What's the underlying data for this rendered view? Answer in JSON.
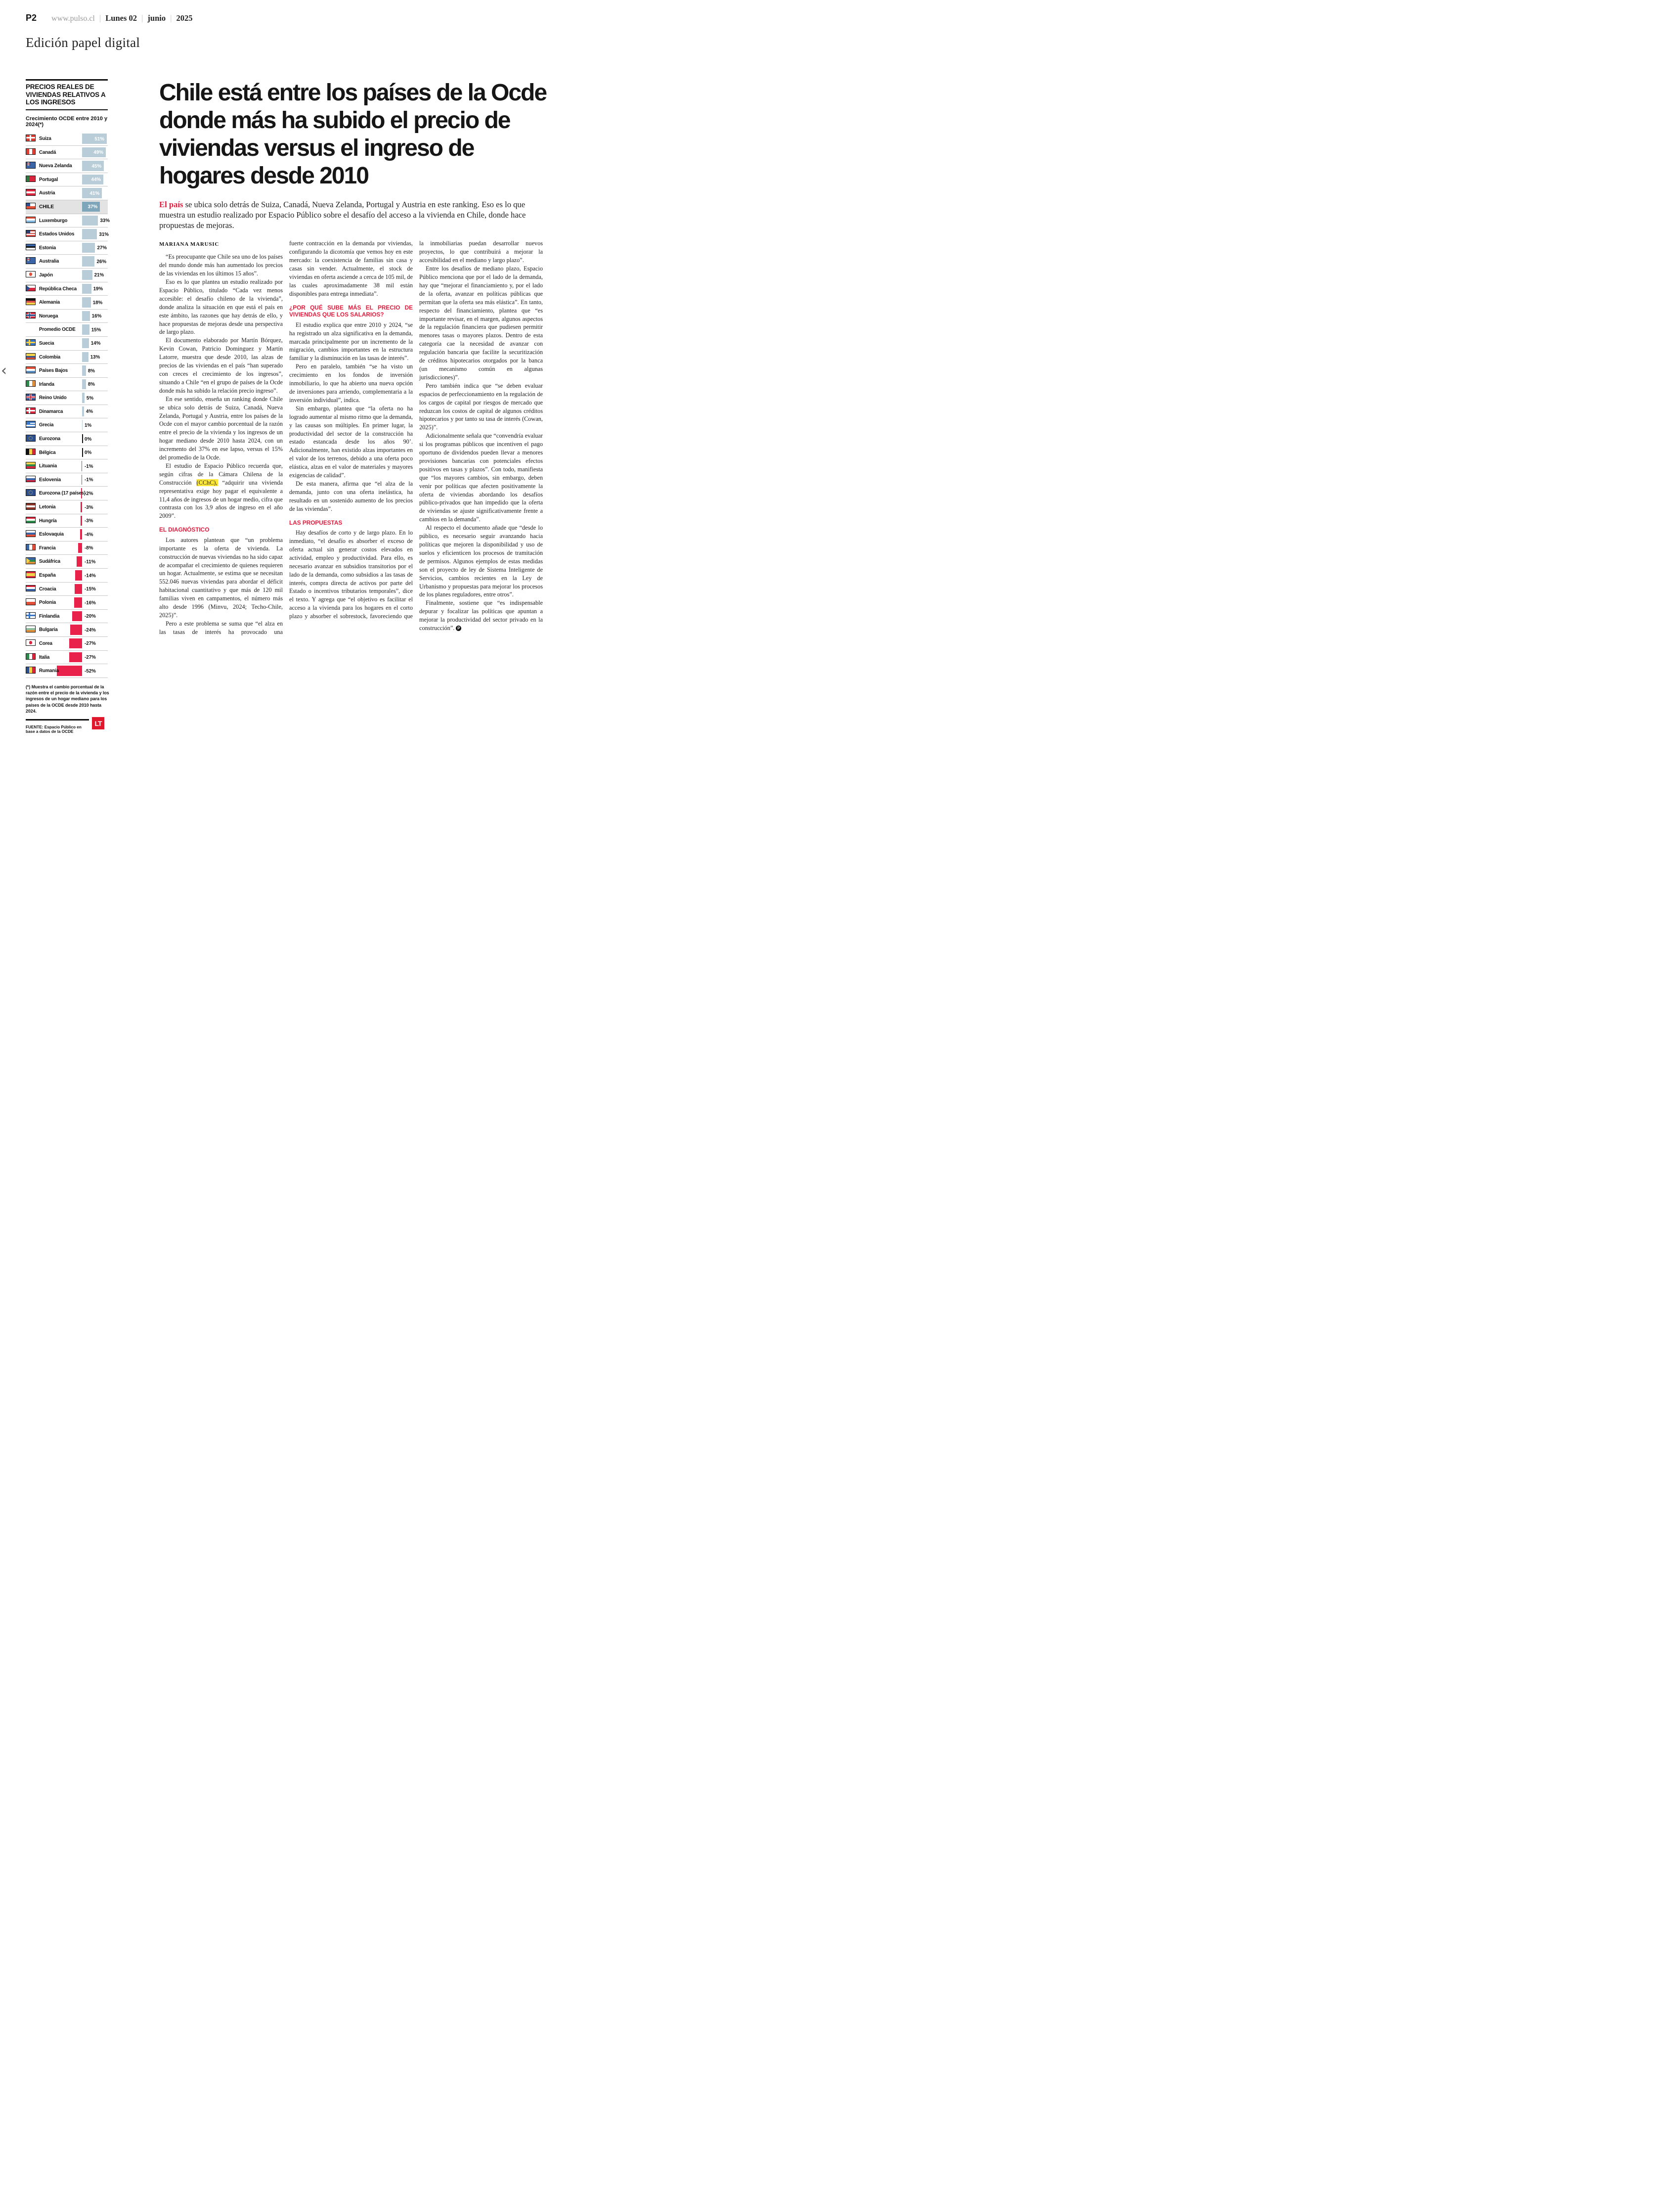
{
  "page": {
    "page_number": "P2",
    "site": "www.pulso.cl",
    "date_day": "Lunes 02",
    "date_month": "junio",
    "date_year": "2025",
    "edition": "Edición papel digital",
    "prev_arrow": "‹"
  },
  "chart_data": {
    "type": "bar",
    "title": "PRECIOS REALES DE VIVIENDAS RELATIVOS A LOS INGRESOS",
    "subtitle": "Crecimiento OCDE entre 2010 y 2024(*)",
    "unit": "%",
    "xlim": [
      -52,
      51
    ],
    "orientation": "horizontal",
    "highlight": "CHILE",
    "positive_color": "#b9cdd8",
    "highlight_bar_color": "#7fa5ba",
    "negative_color": "#e8224a",
    "categories": [
      "Suiza",
      "Canadá",
      "Nueva Zelanda",
      "Portugal",
      "Austria",
      "CHILE",
      "Luxemburgo",
      "Estados Unidos",
      "Estonia",
      "Australia",
      "Japón",
      "República Checa",
      "Alemania",
      "Noruega",
      "Promedio OCDE",
      "Suecia",
      "Colombia",
      "Países Bajos",
      "Irlanda",
      "Reino Unido",
      "Dinamarca",
      "Grecia",
      "Eurozona",
      "Bélgica",
      "Lituania",
      "Eslovenia",
      "Eurozona (17 países)",
      "Letonia",
      "Hungría",
      "Eslovaquia",
      "Francia",
      "Sudáfrica",
      "España",
      "Croacia",
      "Polonia",
      "Finlandia",
      "Bulgaria",
      "Corea",
      "Italia",
      "Rumania"
    ],
    "values": [
      51,
      49,
      45,
      44,
      41,
      37,
      33,
      31,
      27,
      26,
      21,
      19,
      18,
      16,
      15,
      14,
      13,
      8,
      8,
      5,
      4,
      1,
      0,
      0,
      -1,
      -1,
      -2,
      -3,
      -3,
      -4,
      -8,
      -11,
      -14,
      -15,
      -16,
      -20,
      -24,
      -27,
      -27,
      -52
    ],
    "flags": [
      {
        "k": "pluscross",
        "c": [
          "#df3e34",
          "#ffffff"
        ]
      },
      {
        "k": "v",
        "c": [
          "#df3e34",
          "#ffffff",
          "#df3e34"
        ]
      },
      {
        "k": "ukc",
        "c": [
          "#3a66a8"
        ]
      },
      {
        "k": "v",
        "c": [
          "#2c7a3f",
          "#d8243c",
          "#d8243c"
        ]
      },
      {
        "k": "h",
        "c": [
          "#d8243c",
          "#ffffff",
          "#d8243c"
        ]
      },
      {
        "k": "canton",
        "c": [
          "#ffffff",
          "#e05038"
        ],
        "cc": "#2c4f8f"
      },
      {
        "k": "h",
        "c": [
          "#e05038",
          "#ffffff",
          "#7fb2d8"
        ]
      },
      {
        "k": "canton",
        "c": [
          "#d8504a",
          "#ffffff",
          "#d8504a",
          "#ffffff",
          "#d8504a"
        ],
        "cc": "#2c3f6e"
      },
      {
        "k": "h",
        "c": [
          "#3a66a8",
          "#111111",
          "#ffffff"
        ]
      },
      {
        "k": "ukc",
        "c": [
          "#3a66a8"
        ]
      },
      {
        "k": "circle",
        "c": [
          "#ffffff",
          "#e05038"
        ]
      },
      {
        "k": "tri",
        "c": [
          "#ffffff",
          "#d8243c"
        ],
        "t": "#2c4f8f"
      },
      {
        "k": "h",
        "c": [
          "#111111",
          "#d8504a",
          "#f2d24a"
        ]
      },
      {
        "k": "cross2",
        "c": [
          "#d8243c",
          "#ffffff",
          "#2c4f8f"
        ]
      },
      null,
      {
        "k": "cross",
        "c": [
          "#3a75c4",
          "#f2d24a"
        ]
      },
      {
        "k": "hw",
        "c": [
          "#f2d24a",
          "#2c4f8f",
          "#e05038"
        ],
        "w": [
          2,
          1,
          1
        ]
      },
      {
        "k": "h",
        "c": [
          "#e05038",
          "#ffffff",
          "#5c8fc0"
        ]
      },
      {
        "k": "v",
        "c": [
          "#2c8a4a",
          "#ffffff",
          "#e0923a"
        ]
      },
      {
        "k": "pluscross2",
        "c": [
          "#35508f",
          "#ffffff",
          "#d8243c"
        ]
      },
      {
        "k": "cross",
        "c": [
          "#d8243c",
          "#ffffff"
        ]
      },
      {
        "k": "canton",
        "c": [
          "#3a75c4",
          "#ffffff",
          "#3a75c4",
          "#ffffff",
          "#3a75c4"
        ],
        "cc": "#3a75c4"
      },
      {
        "k": "eu",
        "c": [
          "#2c4f8f",
          "#f2d24a"
        ]
      },
      {
        "k": "v",
        "c": [
          "#111111",
          "#f2d24a",
          "#d8243c"
        ]
      },
      {
        "k": "h",
        "c": [
          "#f2d24a",
          "#2c8a4a",
          "#d8243c"
        ]
      },
      {
        "k": "h",
        "c": [
          "#ffffff",
          "#3a66a8",
          "#d8243c"
        ]
      },
      {
        "k": "eu",
        "c": [
          "#2c4f8f",
          "#f2d24a"
        ]
      },
      {
        "k": "h",
        "c": [
          "#8a3428",
          "#ffffff",
          "#8a3428"
        ]
      },
      {
        "k": "h",
        "c": [
          "#d8243c",
          "#ffffff",
          "#2c8a4a"
        ]
      },
      {
        "k": "h",
        "c": [
          "#ffffff",
          "#3a66a8",
          "#e05038"
        ]
      },
      {
        "k": "v",
        "c": [
          "#3a66a8",
          "#ffffff",
          "#e05038"
        ]
      },
      {
        "k": "tri",
        "c": [
          "#3a66a8",
          "#2c8a4a",
          "#e0923a"
        ],
        "t": "#f2d24a"
      },
      {
        "k": "hw",
        "c": [
          "#d8243c",
          "#f2d24a",
          "#d8243c"
        ],
        "w": [
          1,
          2,
          1
        ]
      },
      {
        "k": "h",
        "c": [
          "#d8243c",
          "#ffffff",
          "#3a66a8"
        ]
      },
      {
        "k": "h",
        "c": [
          "#ffffff",
          "#e05038"
        ]
      },
      {
        "k": "cross",
        "c": [
          "#ffffff",
          "#3a75c4"
        ]
      },
      {
        "k": "h",
        "c": [
          "#ffffff",
          "#8fbf9f",
          "#e0923a"
        ]
      },
      {
        "k": "circle",
        "c": [
          "#ffffff",
          "#d8243c"
        ]
      },
      {
        "k": "v",
        "c": [
          "#2c8a4a",
          "#ffffff",
          "#d8243c"
        ]
      },
      {
        "k": "v",
        "c": [
          "#2c4f8f",
          "#f2d24a",
          "#d8243c"
        ]
      }
    ],
    "footnote": "(*) Muestra el cambio porcentual de la razón entre el precio de la vivienda y los ingresos de un hogar mediano para los países de la OCDE desde 2010 hasta 2024.",
    "source": "FUENTE: Espacio Público en base a datos de la OCDE",
    "logo": "LT"
  },
  "article": {
    "headline": "Chile está entre los países de la Ocde donde más ha subido el precio de viviendas versus el ingreso de hogares desde 2010",
    "lede_lead": "El país",
    "lede_rest": " se ubica solo detrás de Suiza, Canadá, Nueva Zelanda, Portugal y Austria en este ranking. Eso es lo que muestra un estudio realizado por Espacio Público sobre el desafío del acceso a la vivienda en Chile, donde hace propuestas de mejoras.",
    "byline": "MARIANA MARUSIC",
    "col1": [
      {
        "t": "by",
        "text": "MARIANA MARUSIC"
      },
      {
        "t": "p",
        "text": "“Es preocupante que Chile sea uno de los países del mundo donde más han aumentado los precios de las viviendas en los últimos 15 años”."
      },
      {
        "t": "p",
        "text": "Eso es lo que plantea un estudio realizado por Espacio Público, titulado “Cada vez menos accesible: el desafío chileno de la vivienda”, donde analiza la situación en que está el país en este ámbito, las razones que hay detrás de ello, y hace propuestas de mejoras desde una perspectiva de largo plazo."
      },
      {
        "t": "p",
        "text": "El documento elaborado por Martín Bórquez, Kevin Cowan, Patricio Dominguez y Martín Latorre, muestra que desde 2010, las alzas de precios de las viviendas en el país “han superado con creces el crecimiento de los ingresos”, situando a Chile “en el grupo de países de la Ocde donde más ha subido la relación precio ingreso”."
      },
      {
        "t": "p",
        "text": "En ese sentido, enseña un ranking donde Chile se ubica solo detrás de Suiza, Canadá, Nueva Zelanda, Portugal y Austria, entre los países de la Ocde con el mayor cambio porcentual de la razón entre el precio de la vivienda y los ingresos de un hogar mediano desde 2010 hasta 2024, con un incremento del 37% en ese lapso, versus el 15% del promedio de la Ocde."
      },
      {
        "t": "p",
        "pre": "El estudio de Espacio Público recuerda que, según cifras de la Cámara Chilena de la Construcción ",
        "hl": "(CChC),",
        "post": " “adquirir una vivienda representativa exige hoy pagar el equivalente a 11,4 años de ingresos de un hogar medio, cifra que contrasta con los 3,9 años de ingreso en el año 2009”."
      },
      {
        "t": "h",
        "text": "EL DIAGNÓSTICO"
      },
      {
        "t": "p",
        "text": "Los autores plantean que “un problema importante es la oferta de vivienda. La construcción de nuevas viviendas no ha sido capaz de acompañar el crecimiento de quienes requieren un hogar. Actualmente, se estima que se necesitan 552.046 nuevas viviendas para abordar el déficit habitacional cuantitativo y que más de 120 mil familias viven en campamentos, el número más alto desde 1996 (Minvu, 2024; Techo-Chile, 2025)”."
      },
      {
        "t": "p",
        "text": "Pero a este problema se suma que “el alza en las tasas de interés ha provocado una",
        "cont": true
      }
    ],
    "col2": [
      {
        "t": "p",
        "indent": false,
        "text": "fuerte contracción en la demanda por viviendas, configurando la dicotomía que vemos hoy en este mercado: la coexistencia de familias sin casa y casas sin vender. Actualmente, el stock de viviendas en oferta asciende a cerca de 105 mil, de las cuales aproximadamente 38 mil están disponibles para entrega inmediata”."
      },
      {
        "t": "h",
        "text": "¿POR QUÉ SUBE MÁS EL PRECIO DE VIVIENDAS QUE LOS SALARIOS?"
      },
      {
        "t": "p",
        "text": "El estudio explica que entre 2010 y 2024, “se ha registrado un alza significativa en la demanda, marcada principalmente por un incremento de la migración, cambios importantes en la estructura familiar y la disminución en las tasas de interés”."
      },
      {
        "t": "p",
        "text": "Pero en paralelo, también “se ha visto un crecimiento en los fondos de inversión inmobiliario, lo que ha abierto una nueva opción de inversiones para arriendo, complementaria a la inversión individual”, indica."
      },
      {
        "t": "p",
        "text": "Sin embargo, plantea que “la oferta no ha logrado aumentar al mismo ritmo que la demanda, y las causas son múltiples. En primer lugar, la productividad del sector de la construcción ha estado estancada desde los años 90’. Adicionalmente, han existido alzas importantes en el valor de los terrenos, debido a una oferta poco elástica, alzas en el valor de materiales y mayores exigencias de calidad”."
      },
      {
        "t": "p",
        "text": "De esta manera, afirma que “el alza de la demanda, junto con una oferta inelástica, ha resultado en un sostenido aumento de los precios de las viviendas”."
      },
      {
        "t": "h",
        "text": "LAS PROPUESTAS"
      },
      {
        "t": "p",
        "text": "Hay desafíos de corto y de largo plazo. En lo inmediato, “el desafío es absorber el exceso de oferta actual sin generar costos elevados en actividad, empleo y productividad. Para ello, es necesario avanzar en subsidios transitorios por el lado de la demanda, como subsidios a las tasas de interés, compra directa de activos por parte del Estado o incentivos tributarios temporales”, dice el texto. Y agrega que “el objetivo es facilitar el acceso a la vivienda para los hogares en el corto plazo y absorber el sobrestock, favoreciendo que",
        "cont": true
      }
    ],
    "col3": [
      {
        "t": "p",
        "indent": false,
        "text": "la inmobiliarias puedan desarrollar nuevos proyectos, lo que contribuirá a mejorar la accesibilidad en el mediano y largo plazo”."
      },
      {
        "t": "p",
        "text": "Entre los desafíos de mediano plazo, Espacio Público menciona que por el lado de la demanda, hay que “mejorar el financiamiento y, por el lado de la oferta, avanzar en políticas públicas que permitan que la oferta sea más elástica”. En tanto, respecto del financiamiento, plantea que “es importante revisar, en el margen, algunos aspectos de la regulación financiera que pudiesen permitir menores tasas o mayores plazos. Dentro de esta categoría cae la necesidad de avanzar con regulación bancaria que facilite la securitización de créditos hipotecarios otorgados por la banca (un mecanismo común en algunas jurisdicciones)”."
      },
      {
        "t": "p",
        "text": "Pero también indica que “se deben evaluar espacios de perfeccionamiento en la regulación de los cargos de capital por riesgos de mercado que reduzcan los costos de capital de algunos créditos hipotecarios y por tanto su tasa de interés (Cowan, 2025)”."
      },
      {
        "t": "p",
        "text": "Adicionalmente señala que “convendría evaluar si los programas públicos que incentiven el pago oportuno de dividendos pueden llevar a menores provisiones bancarias con potenciales efectos positivos en tasas y plazos”. Con todo, manifiesta que “los mayores cambios, sin embargo, deben venir por políticas que afecten positivamente la oferta de viviendas abordando los desafíos público-privados que han impedido que la oferta de viviendas se ajuste significativamente frente a cambios en la demanda”."
      },
      {
        "t": "p",
        "text": "Al respecto el documento añade que “desde lo público, es necesario seguir avanzando hacia políticas que mejoren la disponibilidad y uso de suelos y eficienticen los procesos de tramitación de permisos. Algunos ejemplos de estas medidas son el proyecto de ley de Sistema Inteligente de Servicios, cambios recientes en la Ley de Urbanismo y propuestas para mejorar los procesos de los planes reguladores, entre otros”."
      },
      {
        "t": "p",
        "text": "Finalmente, sostiene que “es indispensable depurar y focalizar las políticas que apuntan a mejorar la productividad del sector privado en la construcción”.",
        "end": true
      }
    ]
  }
}
